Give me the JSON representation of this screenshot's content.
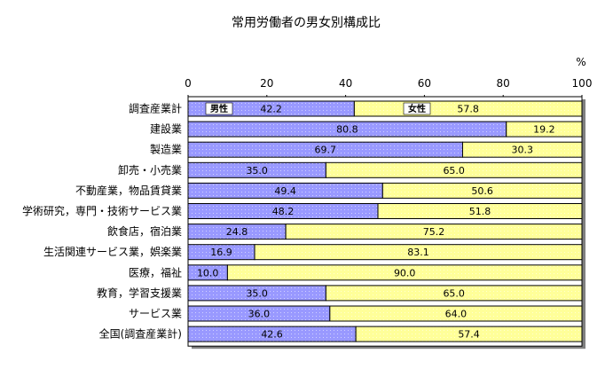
{
  "chart_data": {
    "type": "bar",
    "orientation": "horizontal",
    "stacked": true,
    "title": "常用労働者の男女別構成比",
    "unit": "%",
    "xlim": [
      0,
      100
    ],
    "ticks": [
      "0",
      "20",
      "40",
      "60",
      "80",
      "100"
    ],
    "categories": [
      "調査産業計",
      "建設業",
      "製造業",
      "卸売・小売業",
      "不動産業，物品賃貸業",
      "学術研究，専門・技術サービス業",
      "飲食店，宿泊業",
      "生活関連サービス業，娯楽業",
      "医療，福祉",
      "教育，学習支援業",
      "サービス業",
      "全国(調査産業計)"
    ],
    "series": [
      {
        "name": "男性",
        "color": "#9999ff",
        "values": [
          42.2,
          80.8,
          69.7,
          35.0,
          49.4,
          48.2,
          24.8,
          16.9,
          10.0,
          35.0,
          36.0,
          42.6
        ],
        "labels": [
          "42.2",
          "80.8",
          "69.7",
          "35.0",
          "49.4",
          "48.2",
          "24.8",
          "16.9",
          "10.0",
          "35.0",
          "36.0",
          "42.6"
        ]
      },
      {
        "name": "女性",
        "color": "#ffff99",
        "values": [
          57.8,
          19.2,
          30.3,
          65.0,
          50.6,
          51.8,
          75.2,
          83.1,
          90.0,
          65.0,
          64.0,
          57.4
        ],
        "labels": [
          "57.8",
          "19.2",
          "30.3",
          "65.0",
          "50.6",
          "51.8",
          "75.2",
          "83.1",
          "90.0",
          "65.0",
          "64.0",
          "57.4"
        ]
      }
    ],
    "grid": false,
    "legend": "inside-first-bar"
  }
}
